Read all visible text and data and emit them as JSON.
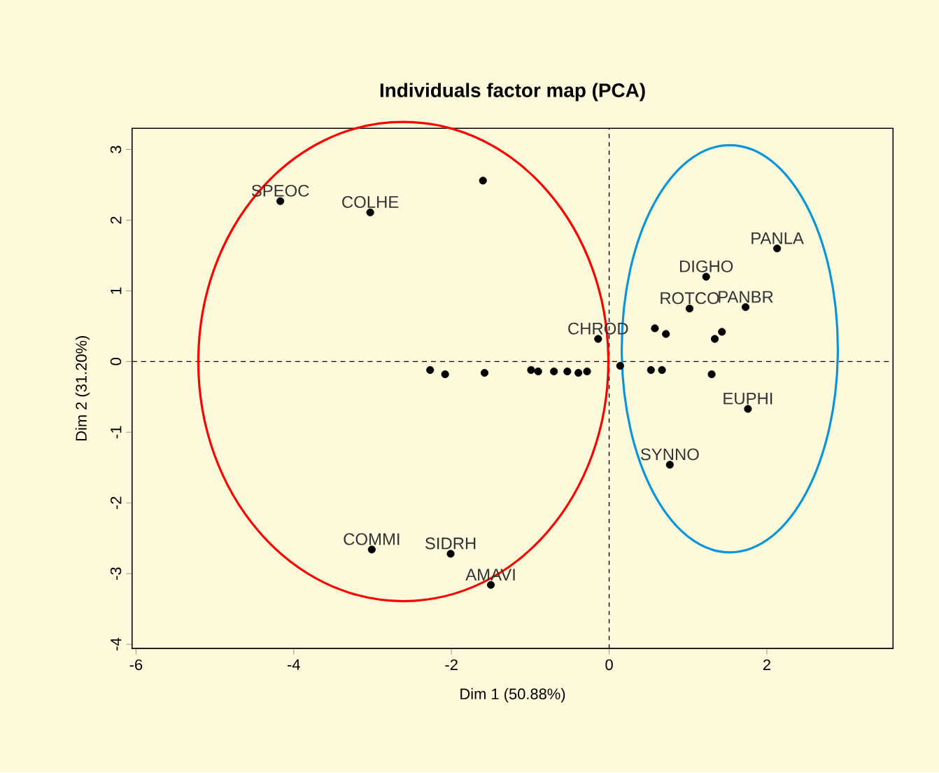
{
  "chart_data": {
    "type": "scatter",
    "title": "Individuals factor map (PCA)",
    "xlabel": "Dim 1 (50.88%)",
    "ylabel": "Dim 2 (31.20%)",
    "x": [
      -4.17,
      -3.03,
      -1.6,
      -0.14,
      -2.27,
      -2.08,
      -1.58,
      -0.99,
      -0.9,
      -0.7,
      -0.53,
      -0.39,
      -0.28,
      2.13,
      1.23,
      1.73,
      1.02,
      0.58,
      0.72,
      1.43,
      1.34,
      1.76,
      1.3,
      0.53,
      0.67,
      0.14,
      0.77,
      -3.01,
      -2.01,
      -1.5
    ],
    "values": [
      2.27,
      2.11,
      2.56,
      0.32,
      -0.12,
      -0.18,
      -0.16,
      -0.12,
      -0.14,
      -0.14,
      -0.14,
      -0.16,
      -0.14,
      1.6,
      1.2,
      0.77,
      0.75,
      0.47,
      0.39,
      0.42,
      0.32,
      -0.67,
      -0.18,
      -0.12,
      -0.12,
      -0.06,
      -1.46,
      -2.66,
      -2.72,
      -3.16
    ],
    "value_labels": [
      "SPEOC",
      "COLHE",
      null,
      "CHROD",
      null,
      null,
      null,
      null,
      null,
      null,
      null,
      null,
      null,
      "PANLA",
      "DIGHO",
      "PANBR",
      "ROTCO",
      null,
      null,
      null,
      null,
      "EUPHI",
      null,
      null,
      null,
      null,
      "SYNNO",
      "COMMI",
      "SIDRH",
      "AMAVI"
    ],
    "color": "#000000",
    "marker": "circle",
    "xlim": [
      -6.05,
      3.6
    ],
    "ylim": [
      -4.06,
      3.3
    ],
    "xticks": [
      -6,
      -4,
      -2,
      0,
      2
    ],
    "yticks": [
      -4,
      -3,
      -2,
      -1,
      0,
      1,
      2,
      3
    ],
    "ref_lines": [
      {
        "axis": "x",
        "value": 0,
        "line_style": "dashed"
      },
      {
        "axis": "y",
        "value": 0,
        "line_style": "dashed"
      }
    ],
    "grid": false
  }
}
